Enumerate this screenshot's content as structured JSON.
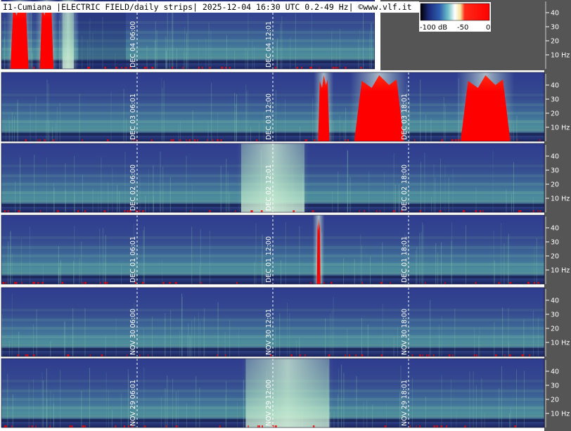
{
  "header": {
    "title": "I1-Cumiana |ELECTRIC FIELD/daily strips| 2025-12-04 16:30 UTC 0.2-49 Hz| ©www.vlf.it"
  },
  "colors": {
    "background": "#ffffff",
    "axis_panel": "#555555",
    "strip_base": "#2f3d8f",
    "strip_mid": "#4a8fa0",
    "strip_high": "#bfe8c4",
    "saturated": "#ff0000",
    "marker": "#ffffff"
  },
  "colorbar": {
    "labels": [
      "-100 dB",
      "-50",
      "0"
    ]
  },
  "chart_data": {
    "type": "heatmap",
    "title": "I1-Cumiana |ELECTRIC FIELD/daily strips| 2025-12-04 16:30 UTC 0.2-49 Hz| ©www.vlf.it",
    "y_axis": {
      "unit": "Hz",
      "range": [
        0.2,
        49
      ],
      "ticks": [
        "40",
        "30",
        "20",
        "10 Hz"
      ],
      "tick_values": [
        40,
        30,
        20,
        10
      ]
    },
    "colorscale": {
      "unit": "dB",
      "range": [
        -100,
        0
      ],
      "labels": [
        "-100 dB",
        "-50",
        "0"
      ]
    },
    "x_axis": {
      "unit": "UTC time of day",
      "range": [
        "00:00",
        "24:00"
      ]
    },
    "strips": [
      {
        "date": "DEC 04",
        "data_end_hour": 16.5,
        "markers": [
          {
            "date_label": "DEC 04",
            "time_label": "06:00",
            "hour": 6
          },
          {
            "date_label": "DEC 04",
            "time_label": "12:01",
            "hour": 12
          }
        ],
        "events": [
          {
            "hour_start": 0.4,
            "hour_end": 1.2,
            "level": "saturated"
          },
          {
            "hour_start": 1.7,
            "hour_end": 2.3,
            "level": "saturated"
          },
          {
            "hour_start": 2.7,
            "hour_end": 3.2,
            "level": "high"
          }
        ],
        "quiet_hours": [
          [
            3.4,
            5.5
          ]
        ]
      },
      {
        "date": "DEC 03",
        "data_end_hour": 24,
        "markers": [
          {
            "date_label": "DEC 03",
            "time_label": "06:01",
            "hour": 6
          },
          {
            "date_label": "DEC 03",
            "time_label": "12:00",
            "hour": 12
          },
          {
            "date_label": "DEC 03",
            "time_label": "18:01",
            "hour": 18
          }
        ],
        "events": [
          {
            "hour_start": 14.0,
            "hour_end": 14.5,
            "level": "saturated"
          },
          {
            "hour_start": 15.6,
            "hour_end": 17.8,
            "level": "saturated"
          },
          {
            "hour_start": 20.3,
            "hour_end": 22.5,
            "level": "saturated"
          }
        ],
        "quiet_hours": []
      },
      {
        "date": "DEC 02",
        "data_end_hour": 24,
        "markers": [
          {
            "date_label": "DEC 02",
            "time_label": "06:00",
            "hour": 6
          },
          {
            "date_label": "DEC 02",
            "time_label": "12:01",
            "hour": 12
          },
          {
            "date_label": "DEC 02",
            "time_label": "18:00",
            "hour": 18
          }
        ],
        "events": [
          {
            "hour_start": 10.6,
            "hour_end": 13.4,
            "level": "high"
          }
        ],
        "quiet_hours": []
      },
      {
        "date": "DEC 01",
        "data_end_hour": 24,
        "markers": [
          {
            "date_label": "DEC 01",
            "time_label": "06:01",
            "hour": 6
          },
          {
            "date_label": "DEC 01",
            "time_label": "12:00",
            "hour": 12
          },
          {
            "date_label": "DEC 01",
            "time_label": "18:01",
            "hour": 18
          }
        ],
        "events": [
          {
            "hour_start": 13.95,
            "hour_end": 14.1,
            "level": "saturated"
          }
        ],
        "quiet_hours": []
      },
      {
        "date": "NOV 30",
        "data_end_hour": 24,
        "markers": [
          {
            "date_label": "NOV 30",
            "time_label": "06:00",
            "hour": 6
          },
          {
            "date_label": "NOV 30",
            "time_label": "12:01",
            "hour": 12
          },
          {
            "date_label": "NOV 30",
            "time_label": "18:00",
            "hour": 18
          }
        ],
        "events": [],
        "quiet_hours": []
      },
      {
        "date": "NOV 29",
        "data_end_hour": 24,
        "markers": [
          {
            "date_label": "NOV 29",
            "time_label": "06:01",
            "hour": 6
          },
          {
            "date_label": "NOV 29",
            "time_label": "12:00",
            "hour": 12
          },
          {
            "date_label": "NOV 29",
            "time_label": "18:01",
            "hour": 18
          }
        ],
        "events": [
          {
            "hour_start": 10.8,
            "hour_end": 14.5,
            "level": "high"
          }
        ],
        "quiet_hours": []
      }
    ]
  }
}
